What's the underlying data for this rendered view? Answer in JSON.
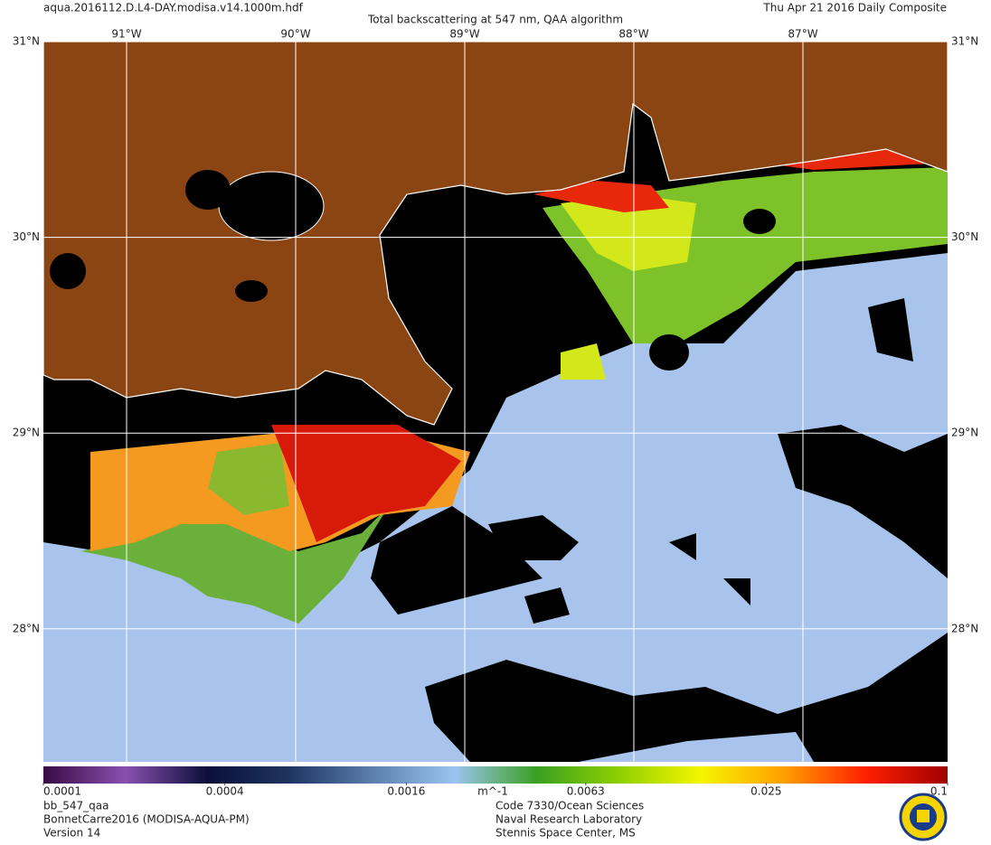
{
  "header": {
    "file": "aqua.2016112.D.L4-DAY.modisa.v14.1000m.hdf",
    "title": "Total backscattering at 547 nm, QAA algorithm",
    "date": "Thu Apr 21 2016 Daily Composite"
  },
  "map": {
    "lat_ticks": [
      {
        "value": 31,
        "label": "31°N"
      },
      {
        "value": 30,
        "label": "30°N"
      },
      {
        "value": 29,
        "label": "29°N"
      },
      {
        "value": 28,
        "label": "28°N"
      }
    ],
    "lon_ticks": [
      {
        "value": -91,
        "label": "91°W"
      },
      {
        "value": -90,
        "label": "90°W"
      },
      {
        "value": -89,
        "label": "89°W"
      },
      {
        "value": -88,
        "label": "88°W"
      },
      {
        "value": -87,
        "label": "87°W"
      }
    ],
    "grid": true
  },
  "colorbar": {
    "log": true,
    "min": 0.0001,
    "max": 0.1,
    "ticks": [
      0.0001,
      0.0004,
      0.0016,
      0.0063,
      0.025,
      0.1
    ],
    "units": "m^-1",
    "colors": [
      "#3a0a44",
      "#8a50b0",
      "#0a0f3a",
      "#1e3560",
      "#5a7fb0",
      "#9cc4f0",
      "#3aa020",
      "#8ed000",
      "#f5f500",
      "#ffa000",
      "#ff2000",
      "#a00000"
    ]
  },
  "footer": {
    "left": [
      "bb_547_qaa",
      "BonnetCarre2016 (MODISA-AQUA-PM)",
      "Version 14"
    ],
    "right": [
      "Code 7330/Ocean Sciences",
      "Naval Research Laboratory",
      "Stennis Space Center, MS"
    ]
  }
}
